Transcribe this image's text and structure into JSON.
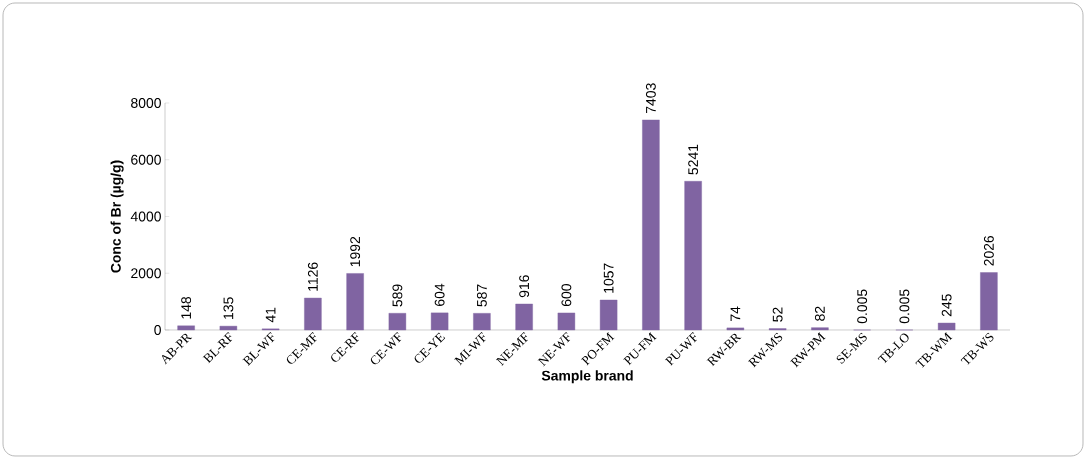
{
  "chart_data": {
    "type": "bar",
    "xlabel": "Sample brand",
    "ylabel": "Conc of Br (µg/g)",
    "categories": [
      "AB-PR",
      "BL-RF",
      "BL-WF",
      "CE-MF",
      "CE-RF",
      "CE-WF",
      "CE-YE",
      "MI-WF",
      "NE-MF",
      "NE-WF",
      "PO-FM",
      "PU-FM",
      "PU-WF",
      "RW-BR",
      "RW-MS",
      "RW-PM",
      "SE-MS",
      "TB-LO",
      "TB-WM",
      "TB-WS"
    ],
    "values": [
      148,
      135,
      41,
      1126,
      1992,
      589,
      604,
      587,
      916,
      600,
      1057,
      7403,
      5241,
      74,
      52,
      82,
      0.005,
      0.005,
      245,
      2026
    ],
    "color": "#8064a2",
    "ylim": [
      0,
      8000
    ],
    "yticks": [
      0,
      2000,
      4000,
      6000,
      8000
    ],
    "data_labels": true
  }
}
